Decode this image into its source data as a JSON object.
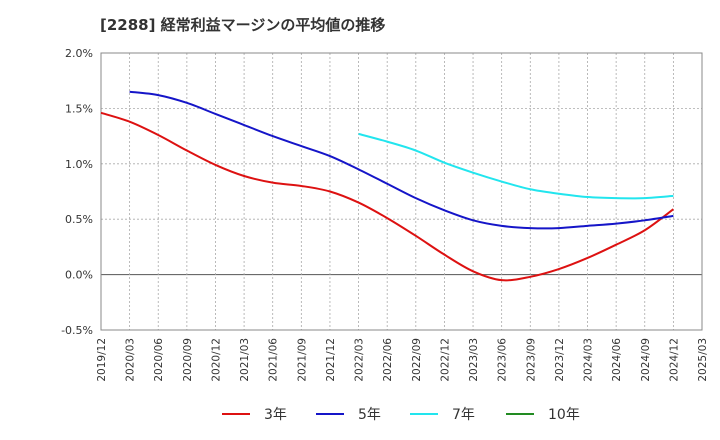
{
  "chart_data": {
    "type": "line",
    "title": "[2288]  経常利益マージンの平均値の推移",
    "xlabel": "",
    "ylabel": "",
    "ylim": [
      -0.5,
      2.0
    ],
    "y_ticks": [
      "2.0%",
      "1.5%",
      "1.0%",
      "0.5%",
      "0.0%",
      "-0.5%"
    ],
    "y_tick_values": [
      2.0,
      1.5,
      1.0,
      0.5,
      0.0,
      -0.5
    ],
    "x_ticks": [
      "2019/12",
      "2020/03",
      "2020/06",
      "2020/09",
      "2020/12",
      "2021/03",
      "2021/06",
      "2021/09",
      "2021/12",
      "2022/03",
      "2022/06",
      "2022/09",
      "2022/12",
      "2023/03",
      "2023/06",
      "2023/09",
      "2023/12",
      "2024/03",
      "2024/06",
      "2024/09",
      "2024/12",
      "2025/03"
    ],
    "grid": true,
    "legend_position": "bottom",
    "series": [
      {
        "name": "3年",
        "color": "#dd1111",
        "x": [
          "2019/12",
          "2020/03",
          "2020/06",
          "2020/09",
          "2020/12",
          "2021/03",
          "2021/06",
          "2021/09",
          "2021/12",
          "2022/03",
          "2022/06",
          "2022/09",
          "2022/12",
          "2023/03",
          "2023/06",
          "2023/09",
          "2023/12",
          "2024/03",
          "2024/06",
          "2024/09",
          "2024/12"
        ],
        "values": [
          1.46,
          1.38,
          1.26,
          1.12,
          0.99,
          0.89,
          0.83,
          0.8,
          0.75,
          0.65,
          0.51,
          0.35,
          0.18,
          0.03,
          -0.05,
          -0.02,
          0.05,
          0.15,
          0.27,
          0.4,
          0.59
        ]
      },
      {
        "name": "5年",
        "color": "#1515c8",
        "x": [
          "2020/03",
          "2020/06",
          "2020/09",
          "2020/12",
          "2021/03",
          "2021/06",
          "2021/09",
          "2021/12",
          "2022/03",
          "2022/06",
          "2022/09",
          "2022/12",
          "2023/03",
          "2023/06",
          "2023/09",
          "2023/12",
          "2024/03",
          "2024/06",
          "2024/09",
          "2024/12"
        ],
        "values": [
          1.65,
          1.62,
          1.55,
          1.45,
          1.35,
          1.25,
          1.16,
          1.07,
          0.95,
          0.82,
          0.69,
          0.58,
          0.49,
          0.44,
          0.42,
          0.42,
          0.44,
          0.46,
          0.49,
          0.53
        ]
      },
      {
        "name": "7年",
        "color": "#22e5ee",
        "x": [
          "2022/03",
          "2022/06",
          "2022/09",
          "2022/12",
          "2023/03",
          "2023/06",
          "2023/09",
          "2023/12",
          "2024/03",
          "2024/06",
          "2024/09",
          "2024/12"
        ],
        "values": [
          1.27,
          1.2,
          1.12,
          1.01,
          0.92,
          0.84,
          0.77,
          0.73,
          0.7,
          0.69,
          0.69,
          0.71
        ]
      },
      {
        "name": "10年",
        "color": "#228b22",
        "x": [],
        "values": []
      }
    ]
  }
}
